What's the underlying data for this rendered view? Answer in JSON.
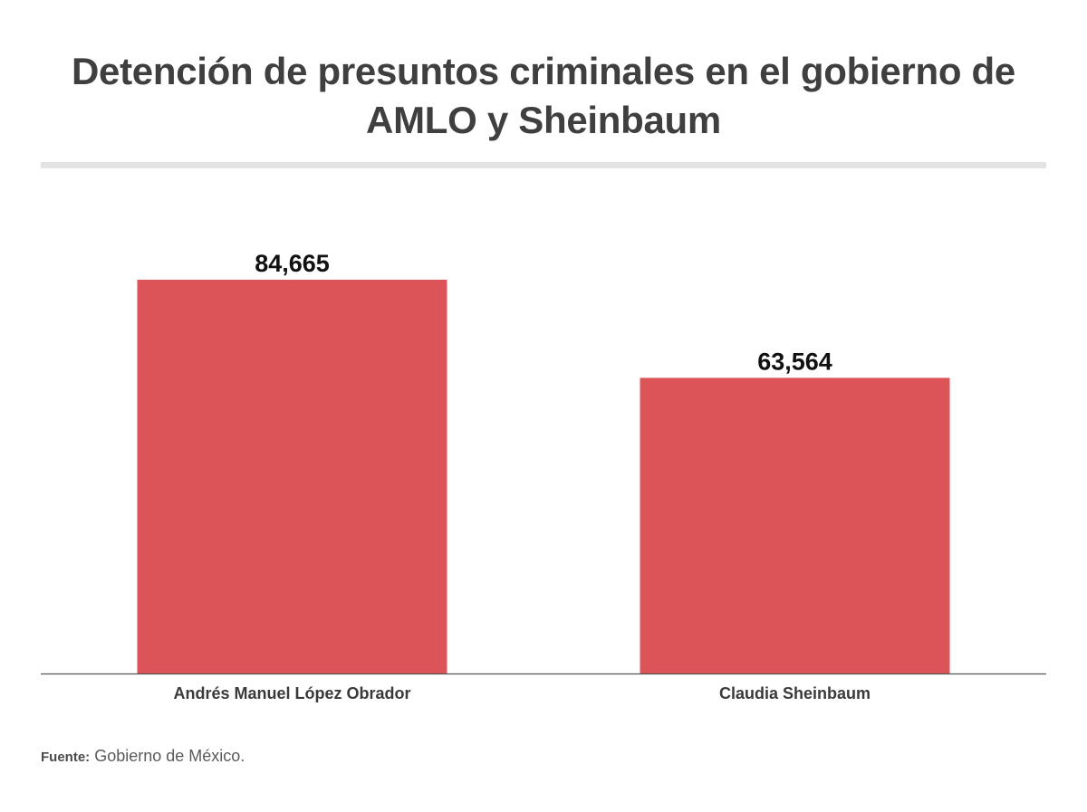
{
  "chart_data": {
    "type": "bar",
    "title": "Detención de presuntos criminales en el gobierno de AMLO y Sheinbaum",
    "categories": [
      "Andrés Manuel López Obrador",
      "Claudia Sheinbaum"
    ],
    "values": [
      84665,
      63564
    ],
    "value_labels": [
      "84,665",
      "63,564"
    ],
    "xlabel": "",
    "ylabel": "",
    "ylim": [
      0,
      84665
    ],
    "grid": false,
    "legend": "none",
    "bar_color": "#dc5457"
  },
  "footer": {
    "source_label": "Fuente:",
    "source_text": "Gobierno de México."
  }
}
